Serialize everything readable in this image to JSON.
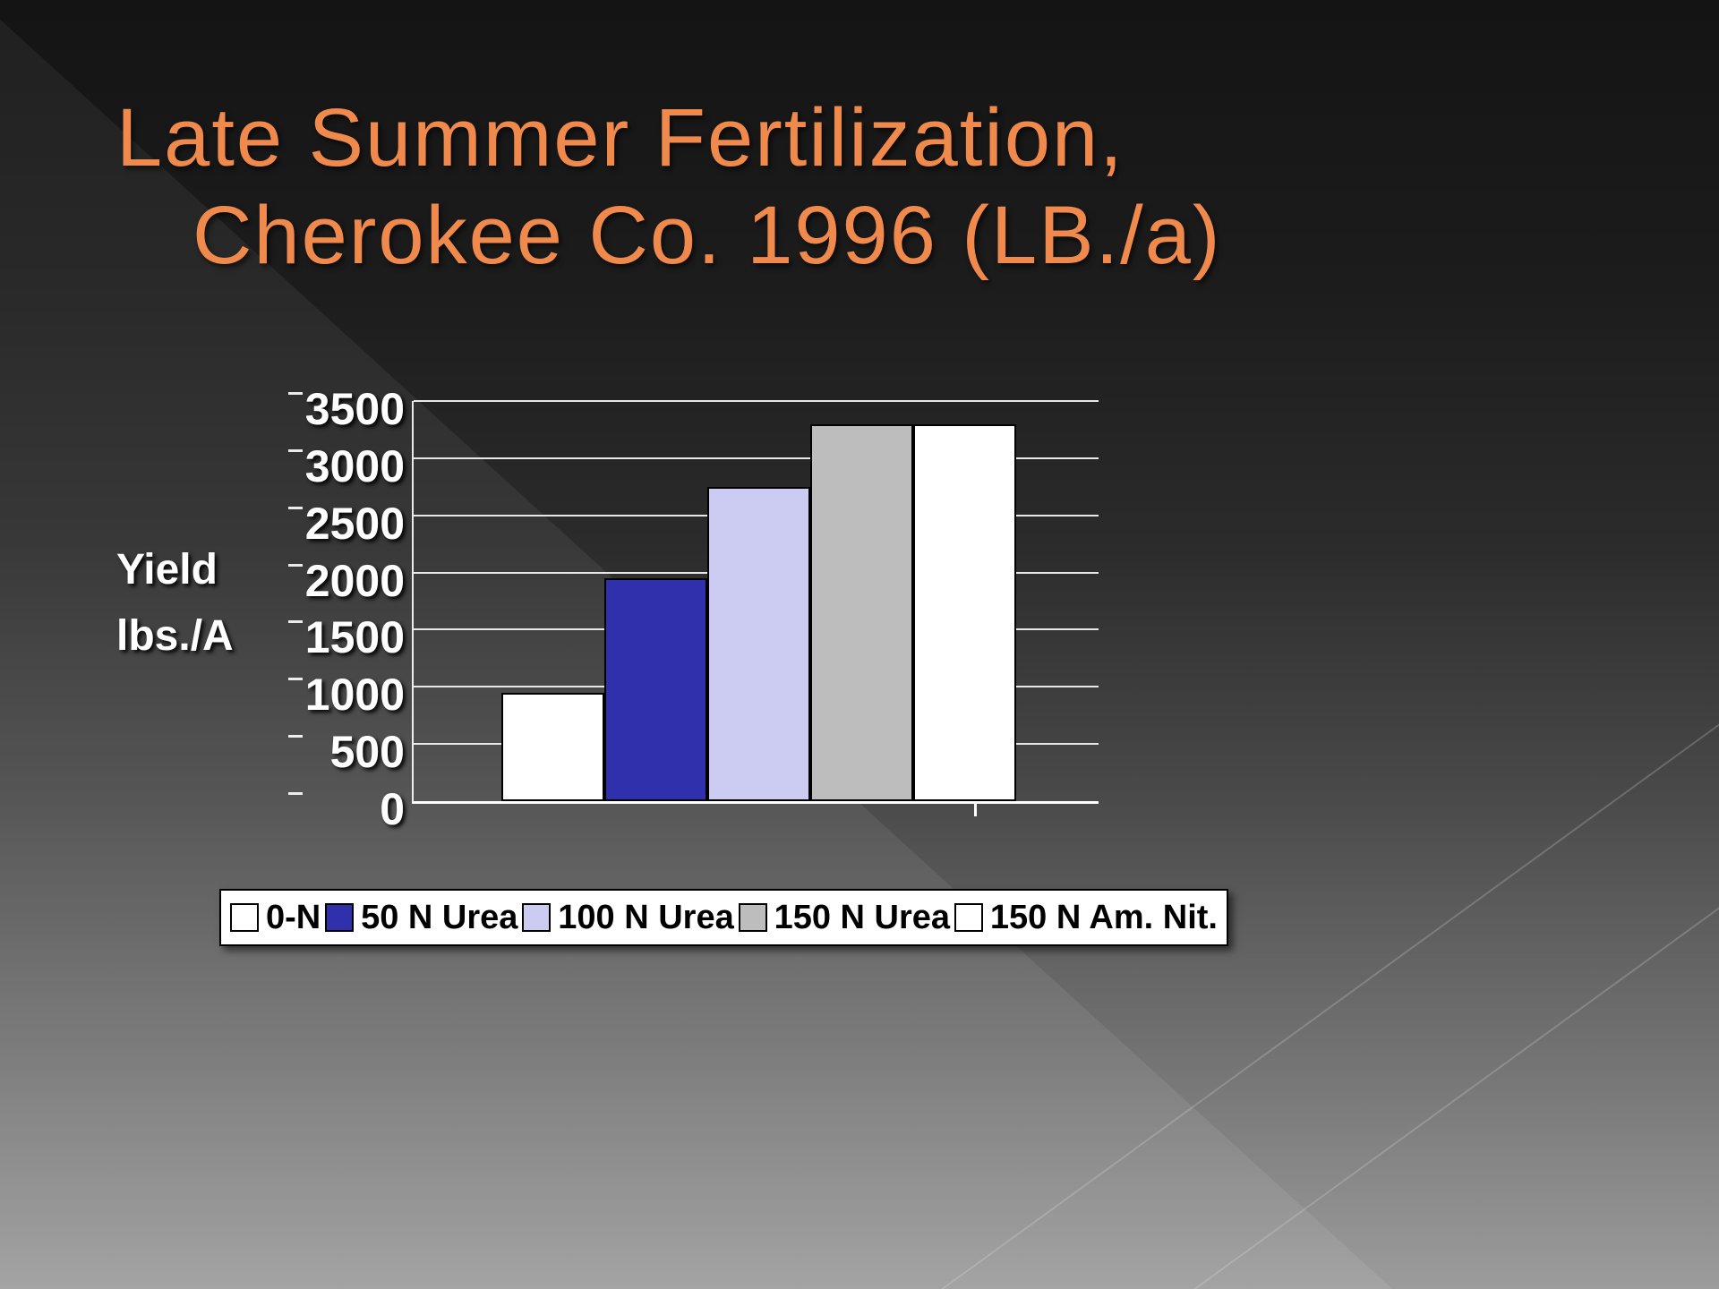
{
  "slide": {
    "title_line1": "Late Summer Fertilization,",
    "title_line2": "Cherokee Co. 1996 (LB./a)",
    "title_color": "#F08A4C"
  },
  "chart_data": {
    "type": "bar",
    "title": "Late Summer Fertilization, Cherokee Co. 1996 (LB./a)",
    "xlabel": "",
    "ylabel": "Yield lbs./A",
    "ylabel_display": "Yield\nlbs./A",
    "ylim": [
      0,
      3500
    ],
    "yticks": [
      3500,
      3000,
      2500,
      2000,
      1500,
      1000,
      500,
      0
    ],
    "grid": true,
    "legend_position": "bottom",
    "categories": [
      "0-N",
      "50 N Urea",
      "100 N Urea",
      "150 N Urea",
      "150 N Am. Nit."
    ],
    "series": [
      {
        "name": "0-N",
        "value": 950,
        "color": "#FFFFFF"
      },
      {
        "name": "50 N Urea",
        "value": 1950,
        "color": "#3030AC"
      },
      {
        "name": "100 N Urea",
        "value": 2750,
        "color": "#CCCCF2"
      },
      {
        "name": "150 N Urea",
        "value": 3300,
        "color": "#BDBDBD"
      },
      {
        "name": "150 N Am. Nit.",
        "value": 3300,
        "color": "#FFFFFF"
      }
    ]
  }
}
